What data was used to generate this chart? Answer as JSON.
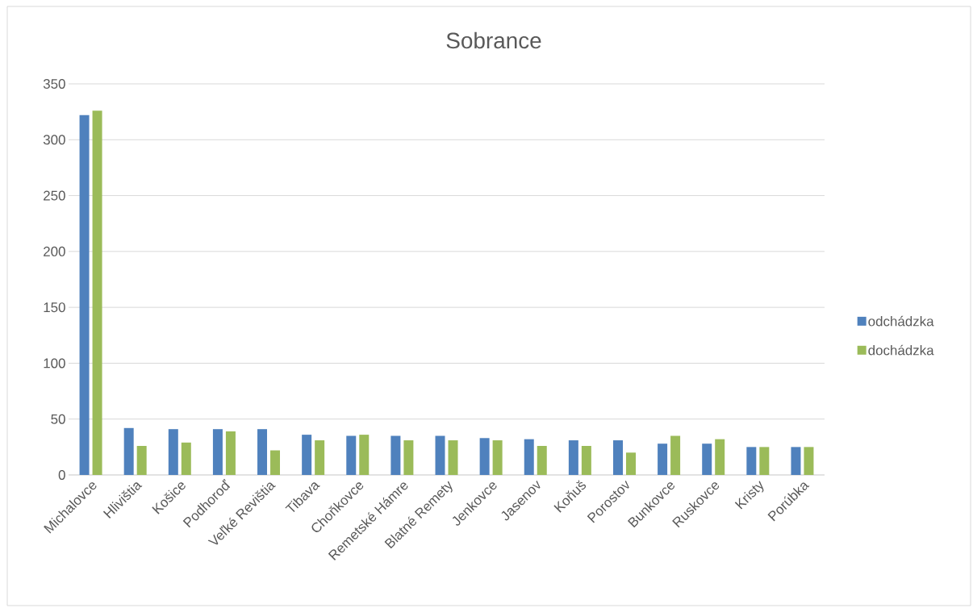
{
  "chart_data": {
    "type": "bar",
    "title": "Sobrance",
    "categories": [
      "Michalovce",
      "Hlivištia",
      "Košice",
      "Podhoroď",
      "Veľké Revištia",
      "Tibava",
      "Choňkovce",
      "Remetské Hámre",
      "Blatné Remety",
      "Jenkovce",
      "Jasenov",
      "Koňuš",
      "Porostov",
      "Bunkovce",
      "Ruskovce",
      "Kristy",
      "Porúbka"
    ],
    "series": [
      {
        "name": "odchádzka",
        "color": "#4f81bd",
        "values": [
          322,
          42,
          41,
          41,
          41,
          36,
          35,
          35,
          35,
          33,
          32,
          31,
          31,
          28,
          28,
          25,
          25
        ]
      },
      {
        "name": "dochádzka",
        "color": "#9bbb59",
        "values": [
          326,
          26,
          29,
          39,
          22,
          31,
          36,
          31,
          31,
          31,
          26,
          26,
          20,
          35,
          32,
          25,
          25
        ]
      }
    ],
    "ylim": [
      0,
      350
    ],
    "yticks": [
      0,
      50,
      100,
      150,
      200,
      250,
      300,
      350
    ],
    "grid": "y",
    "legend": "right"
  }
}
